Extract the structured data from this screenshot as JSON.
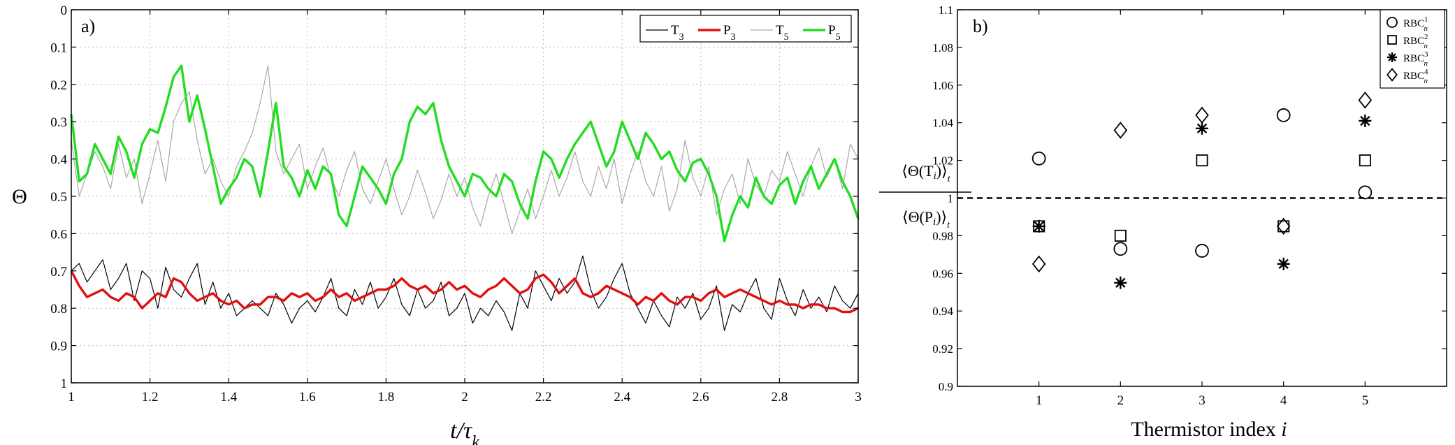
{
  "chart_data": [
    {
      "type": "line",
      "panel_label": "a)",
      "ylabel": "Θ",
      "xlabel": "t/τ_k",
      "xlim": [
        1,
        3
      ],
      "ylim": [
        1,
        0
      ],
      "y_inverted": true,
      "grid": true,
      "legend_placement": "top-right",
      "xticks": [
        "1",
        "1.2",
        "1.4",
        "1.6",
        "1.8",
        "2",
        "2.2",
        "2.4",
        "2.6",
        "2.8",
        "3"
      ],
      "yticks": [
        "0",
        "0.1",
        "0.2",
        "0.3",
        "0.4",
        "0.5",
        "0.6",
        "0.7",
        "0.8",
        "0.9",
        "1"
      ],
      "series": [
        {
          "name": "T3",
          "label_base": "T",
          "label_sub": "3",
          "color": "#000000",
          "weight": "thin",
          "x": [
            1.0,
            1.02,
            1.04,
            1.06,
            1.08,
            1.1,
            1.12,
            1.14,
            1.16,
            1.18,
            1.2,
            1.22,
            1.24,
            1.26,
            1.28,
            1.3,
            1.32,
            1.34,
            1.36,
            1.38,
            1.4,
            1.42,
            1.44,
            1.46,
            1.48,
            1.5,
            1.52,
            1.54,
            1.56,
            1.58,
            1.6,
            1.62,
            1.64,
            1.66,
            1.68,
            1.7,
            1.72,
            1.74,
            1.76,
            1.78,
            1.8,
            1.82,
            1.84,
            1.86,
            1.88,
            1.9,
            1.92,
            1.94,
            1.96,
            1.98,
            2.0,
            2.02,
            2.04,
            2.06,
            2.08,
            2.1,
            2.12,
            2.14,
            2.16,
            2.18,
            2.2,
            2.22,
            2.24,
            2.26,
            2.28,
            2.3,
            2.32,
            2.34,
            2.36,
            2.38,
            2.4,
            2.42,
            2.44,
            2.46,
            2.48,
            2.5,
            2.52,
            2.54,
            2.56,
            2.58,
            2.6,
            2.62,
            2.64,
            2.66,
            2.68,
            2.7,
            2.72,
            2.74,
            2.76,
            2.78,
            2.8,
            2.82,
            2.84,
            2.86,
            2.88,
            2.9,
            2.92,
            2.94,
            2.96,
            2.98,
            3.0
          ],
          "y": [
            0.7,
            0.68,
            0.73,
            0.7,
            0.67,
            0.75,
            0.72,
            0.68,
            0.78,
            0.7,
            0.72,
            0.8,
            0.69,
            0.75,
            0.77,
            0.72,
            0.68,
            0.79,
            0.73,
            0.8,
            0.76,
            0.82,
            0.8,
            0.78,
            0.8,
            0.82,
            0.76,
            0.79,
            0.84,
            0.8,
            0.78,
            0.81,
            0.77,
            0.72,
            0.8,
            0.82,
            0.75,
            0.79,
            0.73,
            0.8,
            0.77,
            0.72,
            0.79,
            0.82,
            0.75,
            0.8,
            0.78,
            0.73,
            0.82,
            0.8,
            0.76,
            0.84,
            0.8,
            0.82,
            0.78,
            0.81,
            0.86,
            0.76,
            0.8,
            0.7,
            0.74,
            0.78,
            0.72,
            0.76,
            0.73,
            0.66,
            0.75,
            0.8,
            0.77,
            0.72,
            0.68,
            0.76,
            0.8,
            0.84,
            0.78,
            0.82,
            0.85,
            0.77,
            0.8,
            0.76,
            0.83,
            0.8,
            0.74,
            0.86,
            0.79,
            0.81,
            0.76,
            0.72,
            0.8,
            0.83,
            0.72,
            0.78,
            0.82,
            0.75,
            0.8,
            0.77,
            0.81,
            0.74,
            0.78,
            0.8,
            0.76
          ]
        },
        {
          "name": "P3",
          "label_base": "P",
          "label_sub": "3",
          "color": "#e01010",
          "weight": "thick",
          "x": [
            1.0,
            1.02,
            1.04,
            1.06,
            1.08,
            1.1,
            1.12,
            1.14,
            1.16,
            1.18,
            1.2,
            1.22,
            1.24,
            1.26,
            1.28,
            1.3,
            1.32,
            1.34,
            1.36,
            1.38,
            1.4,
            1.42,
            1.44,
            1.46,
            1.48,
            1.5,
            1.52,
            1.54,
            1.56,
            1.58,
            1.6,
            1.62,
            1.64,
            1.66,
            1.68,
            1.7,
            1.72,
            1.74,
            1.76,
            1.78,
            1.8,
            1.82,
            1.84,
            1.86,
            1.88,
            1.9,
            1.92,
            1.94,
            1.96,
            1.98,
            2.0,
            2.02,
            2.04,
            2.06,
            2.08,
            2.1,
            2.12,
            2.14,
            2.16,
            2.18,
            2.2,
            2.22,
            2.24,
            2.26,
            2.28,
            2.3,
            2.32,
            2.34,
            2.36,
            2.38,
            2.4,
            2.42,
            2.44,
            2.46,
            2.48,
            2.5,
            2.52,
            2.54,
            2.56,
            2.58,
            2.6,
            2.62,
            2.64,
            2.66,
            2.68,
            2.7,
            2.72,
            2.74,
            2.76,
            2.78,
            2.8,
            2.82,
            2.84,
            2.86,
            2.88,
            2.9,
            2.92,
            2.94,
            2.96,
            2.98,
            3.0
          ],
          "y": [
            0.7,
            0.74,
            0.77,
            0.76,
            0.75,
            0.77,
            0.78,
            0.76,
            0.77,
            0.8,
            0.78,
            0.76,
            0.77,
            0.72,
            0.73,
            0.76,
            0.78,
            0.77,
            0.76,
            0.78,
            0.79,
            0.78,
            0.8,
            0.79,
            0.79,
            0.77,
            0.77,
            0.78,
            0.76,
            0.77,
            0.76,
            0.78,
            0.77,
            0.75,
            0.77,
            0.76,
            0.78,
            0.77,
            0.76,
            0.75,
            0.75,
            0.74,
            0.72,
            0.74,
            0.75,
            0.74,
            0.76,
            0.75,
            0.73,
            0.75,
            0.74,
            0.76,
            0.77,
            0.75,
            0.74,
            0.72,
            0.74,
            0.76,
            0.75,
            0.72,
            0.71,
            0.73,
            0.76,
            0.74,
            0.72,
            0.76,
            0.77,
            0.76,
            0.74,
            0.75,
            0.76,
            0.77,
            0.79,
            0.77,
            0.78,
            0.76,
            0.78,
            0.79,
            0.77,
            0.77,
            0.78,
            0.76,
            0.75,
            0.77,
            0.76,
            0.75,
            0.76,
            0.77,
            0.78,
            0.79,
            0.78,
            0.79,
            0.79,
            0.8,
            0.79,
            0.79,
            0.8,
            0.8,
            0.81,
            0.81,
            0.8
          ]
        },
        {
          "name": "T5",
          "label_base": "T",
          "label_sub": "5",
          "color": "#a9a9a9",
          "weight": "thin",
          "x": [
            1.0,
            1.02,
            1.04,
            1.06,
            1.08,
            1.1,
            1.12,
            1.14,
            1.16,
            1.18,
            1.2,
            1.22,
            1.24,
            1.26,
            1.28,
            1.3,
            1.32,
            1.34,
            1.36,
            1.38,
            1.4,
            1.42,
            1.44,
            1.46,
            1.48,
            1.5,
            1.52,
            1.54,
            1.56,
            1.58,
            1.6,
            1.62,
            1.64,
            1.66,
            1.68,
            1.7,
            1.72,
            1.74,
            1.76,
            1.78,
            1.8,
            1.82,
            1.84,
            1.86,
            1.88,
            1.9,
            1.92,
            1.94,
            1.96,
            1.98,
            2.0,
            2.02,
            2.04,
            2.06,
            2.08,
            2.1,
            2.12,
            2.14,
            2.16,
            2.18,
            2.2,
            2.22,
            2.24,
            2.26,
            2.28,
            2.3,
            2.32,
            2.34,
            2.36,
            2.38,
            2.4,
            2.42,
            2.44,
            2.46,
            2.48,
            2.5,
            2.52,
            2.54,
            2.56,
            2.58,
            2.6,
            2.62,
            2.64,
            2.66,
            2.68,
            2.7,
            2.72,
            2.74,
            2.76,
            2.78,
            2.8,
            2.82,
            2.84,
            2.86,
            2.88,
            2.9,
            2.92,
            2.94,
            2.96,
            2.98,
            3.0
          ],
          "y": [
            0.35,
            0.5,
            0.44,
            0.38,
            0.42,
            0.48,
            0.36,
            0.45,
            0.4,
            0.52,
            0.44,
            0.35,
            0.46,
            0.3,
            0.25,
            0.22,
            0.35,
            0.44,
            0.4,
            0.46,
            0.5,
            0.42,
            0.38,
            0.33,
            0.25,
            0.15,
            0.38,
            0.44,
            0.4,
            0.36,
            0.48,
            0.42,
            0.37,
            0.45,
            0.5,
            0.43,
            0.38,
            0.48,
            0.52,
            0.46,
            0.4,
            0.48,
            0.55,
            0.5,
            0.43,
            0.49,
            0.56,
            0.51,
            0.44,
            0.5,
            0.45,
            0.53,
            0.58,
            0.5,
            0.44,
            0.52,
            0.6,
            0.54,
            0.48,
            0.56,
            0.5,
            0.43,
            0.5,
            0.45,
            0.38,
            0.46,
            0.5,
            0.42,
            0.48,
            0.4,
            0.52,
            0.44,
            0.38,
            0.46,
            0.5,
            0.42,
            0.54,
            0.48,
            0.35,
            0.45,
            0.5,
            0.42,
            0.55,
            0.48,
            0.44,
            0.52,
            0.4,
            0.47,
            0.5,
            0.43,
            0.46,
            0.38,
            0.44,
            0.5,
            0.42,
            0.37,
            0.45,
            0.4,
            0.48,
            0.36,
            0.4
          ]
        },
        {
          "name": "P5",
          "label_base": "P",
          "label_sub": "5",
          "color": "#22dd22",
          "weight": "thick",
          "x": [
            1.0,
            1.02,
            1.04,
            1.06,
            1.08,
            1.1,
            1.12,
            1.14,
            1.16,
            1.18,
            1.2,
            1.22,
            1.24,
            1.26,
            1.28,
            1.3,
            1.32,
            1.34,
            1.36,
            1.38,
            1.4,
            1.42,
            1.44,
            1.46,
            1.48,
            1.5,
            1.52,
            1.54,
            1.56,
            1.58,
            1.6,
            1.62,
            1.64,
            1.66,
            1.68,
            1.7,
            1.72,
            1.74,
            1.76,
            1.78,
            1.8,
            1.82,
            1.84,
            1.86,
            1.88,
            1.9,
            1.92,
            1.94,
            1.96,
            1.98,
            2.0,
            2.02,
            2.04,
            2.06,
            2.08,
            2.1,
            2.12,
            2.14,
            2.16,
            2.18,
            2.2,
            2.22,
            2.24,
            2.26,
            2.28,
            2.3,
            2.32,
            2.34,
            2.36,
            2.38,
            2.4,
            2.42,
            2.44,
            2.46,
            2.48,
            2.5,
            2.52,
            2.54,
            2.56,
            2.58,
            2.6,
            2.62,
            2.64,
            2.66,
            2.68,
            2.7,
            2.72,
            2.74,
            2.76,
            2.78,
            2.8,
            2.82,
            2.84,
            2.86,
            2.88,
            2.9,
            2.92,
            2.94,
            2.96,
            2.98,
            3.0
          ],
          "y": [
            0.28,
            0.46,
            0.44,
            0.36,
            0.4,
            0.44,
            0.34,
            0.38,
            0.45,
            0.36,
            0.32,
            0.33,
            0.26,
            0.18,
            0.15,
            0.3,
            0.23,
            0.32,
            0.42,
            0.52,
            0.48,
            0.45,
            0.4,
            0.42,
            0.5,
            0.38,
            0.25,
            0.42,
            0.45,
            0.5,
            0.43,
            0.48,
            0.42,
            0.44,
            0.55,
            0.58,
            0.5,
            0.42,
            0.45,
            0.48,
            0.52,
            0.44,
            0.4,
            0.3,
            0.26,
            0.28,
            0.25,
            0.35,
            0.42,
            0.46,
            0.5,
            0.44,
            0.45,
            0.48,
            0.5,
            0.44,
            0.46,
            0.52,
            0.56,
            0.46,
            0.38,
            0.4,
            0.45,
            0.4,
            0.36,
            0.33,
            0.3,
            0.36,
            0.42,
            0.38,
            0.3,
            0.35,
            0.4,
            0.33,
            0.36,
            0.4,
            0.38,
            0.43,
            0.46,
            0.41,
            0.4,
            0.44,
            0.5,
            0.62,
            0.55,
            0.5,
            0.53,
            0.45,
            0.5,
            0.52,
            0.47,
            0.45,
            0.52,
            0.46,
            0.42,
            0.48,
            0.44,
            0.4,
            0.46,
            0.5,
            0.56
          ]
        }
      ]
    },
    {
      "type": "scatter",
      "panel_label": "b)",
      "ylabel_num": "⟨Θ(T_i)⟩_t",
      "ylabel_den": "⟨Θ(P_i)⟩_t",
      "xlabel": "Thermistor index",
      "xlabel_var": "i",
      "xlim": [
        0,
        6
      ],
      "ylim": [
        0.9,
        1.1
      ],
      "grid": false,
      "legend_placement": "top-right",
      "reference_line": 1,
      "xticks": [
        "1",
        "2",
        "3",
        "4",
        "5"
      ],
      "yticks": [
        "0.9",
        "0.92",
        "0.94",
        "0.96",
        "0.98",
        "1",
        "1.02",
        "1.04",
        "1.06",
        "1.08",
        "1.1"
      ],
      "series": [
        {
          "name": "RBC_n^1",
          "label_base": "RBC",
          "label_sup": "1",
          "label_sub": "n",
          "marker": "circle",
          "x": [
            1,
            2,
            3,
            4,
            5
          ],
          "y": [
            1.021,
            0.973,
            0.972,
            1.044,
            1.003
          ]
        },
        {
          "name": "RBC_n^2",
          "label_base": "RBC",
          "label_sup": "2",
          "label_sub": "n",
          "marker": "square",
          "x": [
            1,
            2,
            3,
            4,
            5
          ],
          "y": [
            0.985,
            0.98,
            1.02,
            0.985,
            1.02
          ]
        },
        {
          "name": "RBC_n^3",
          "label_base": "RBC",
          "label_sup": "3",
          "label_sub": "n",
          "marker": "asterisk",
          "x": [
            1,
            2,
            3,
            4,
            5
          ],
          "y": [
            0.985,
            0.955,
            1.037,
            0.965,
            1.041
          ]
        },
        {
          "name": "RBC_n^4",
          "label_base": "RBC",
          "label_sup": "4",
          "label_sub": "n",
          "marker": "diamond",
          "x": [
            1,
            2,
            3,
            4,
            5
          ],
          "y": [
            0.965,
            1.036,
            1.044,
            0.985,
            1.052
          ]
        }
      ]
    }
  ]
}
